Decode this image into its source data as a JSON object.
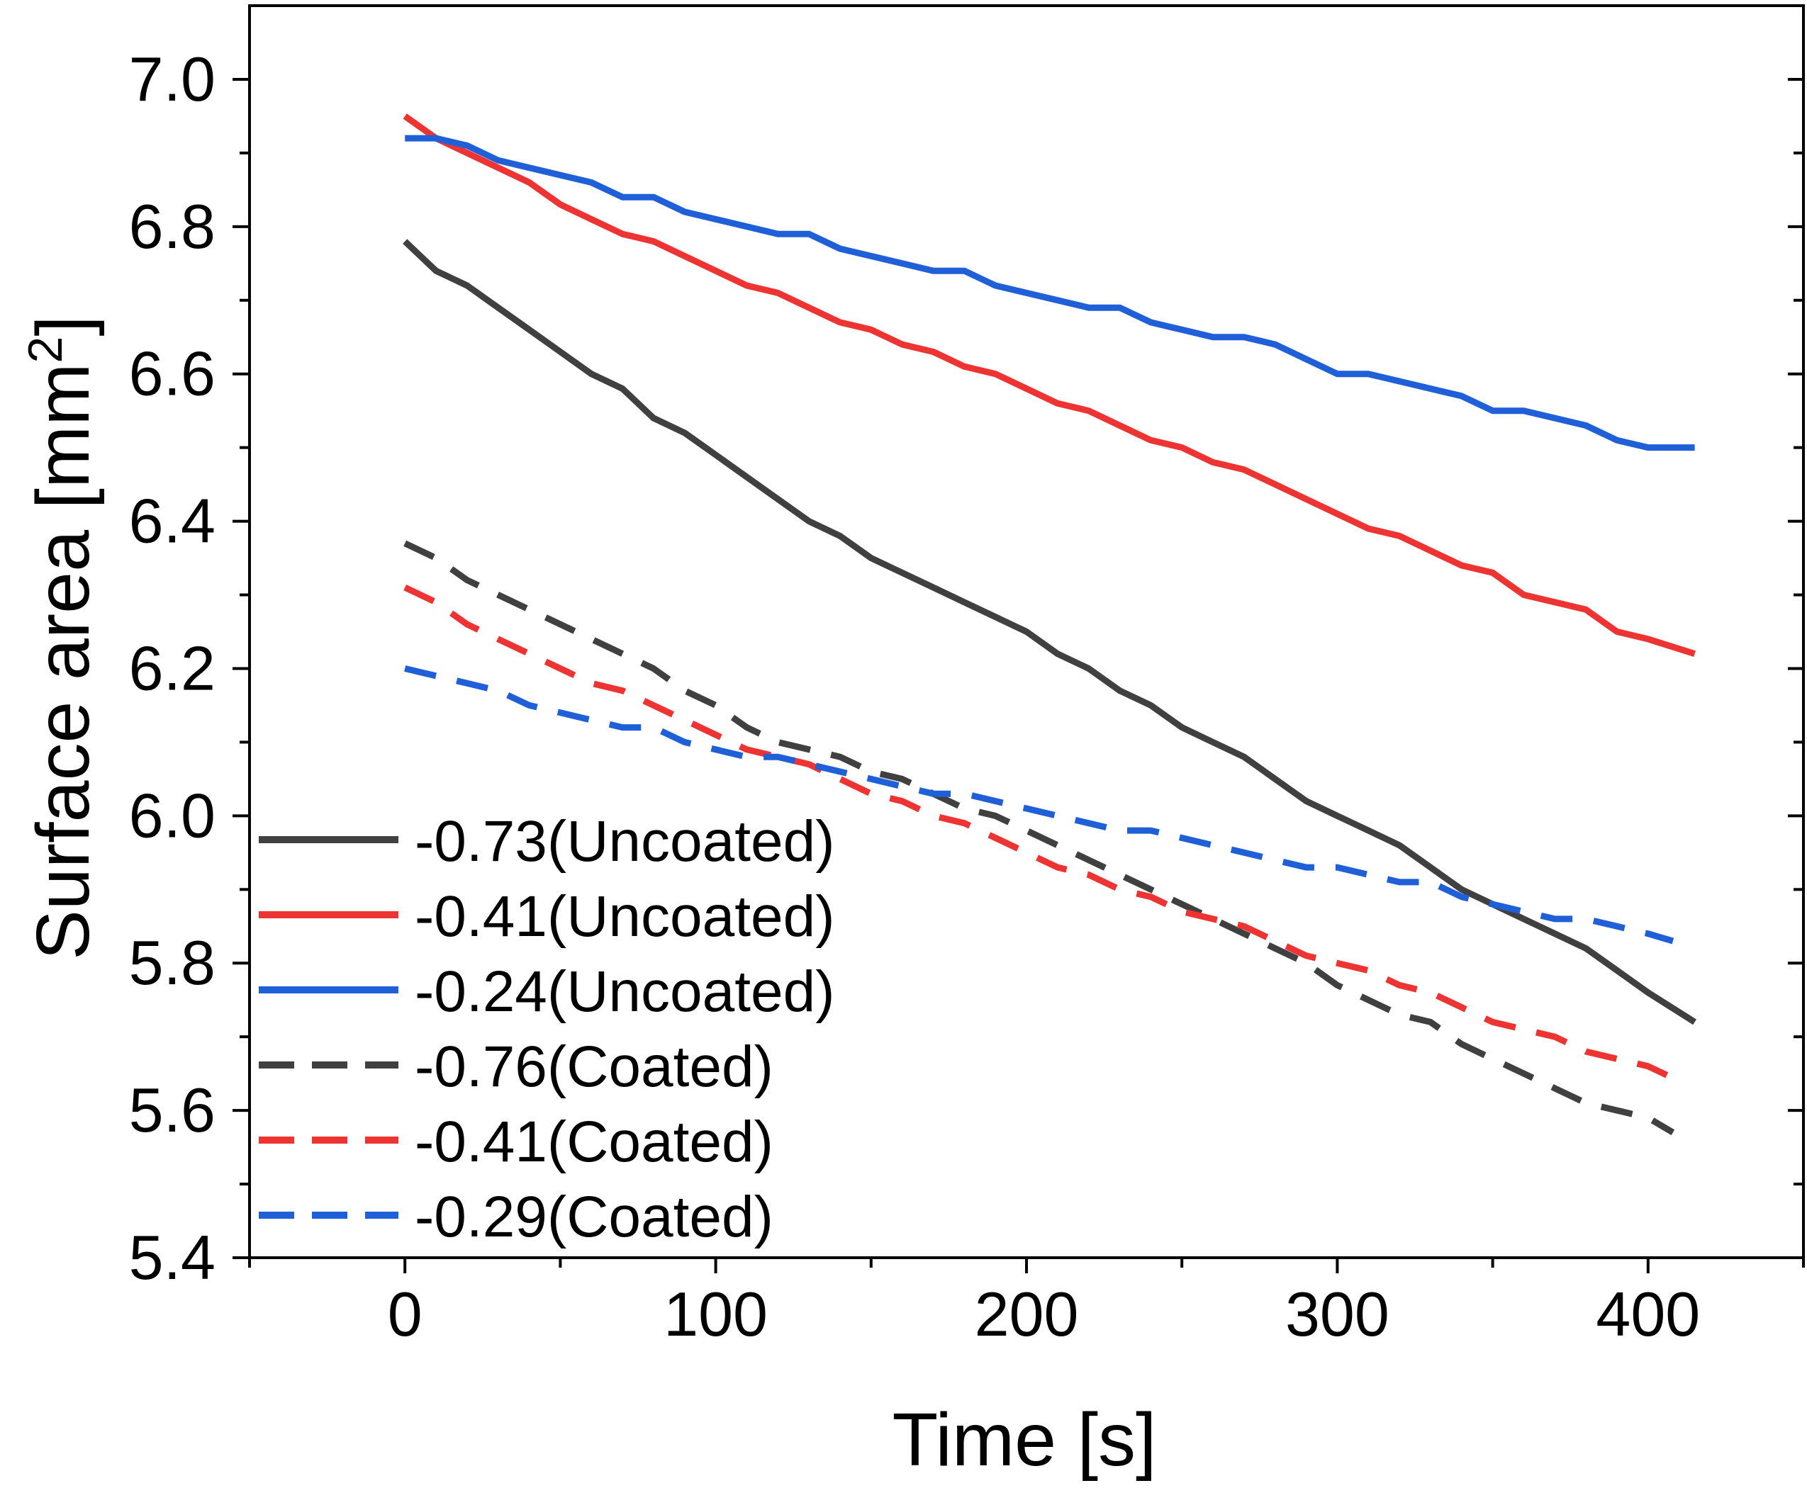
{
  "chart_data": {
    "type": "line",
    "title": "",
    "xlabel": "Time [s]",
    "ylabel": "Surface area [mm",
    "ylabel_sup": "2",
    "ylabel_end": "]",
    "xlim": [
      -50,
      450
    ],
    "ylim": [
      5.4,
      7.1
    ],
    "xticks": [
      0,
      100,
      200,
      300,
      400
    ],
    "xtick_labels": [
      "0",
      "100",
      "200",
      "300",
      "400"
    ],
    "yticks": [
      5.4,
      5.6,
      5.8,
      6.0,
      6.2,
      6.4,
      6.6,
      6.8,
      7.0
    ],
    "ytick_labels": [
      "5.4",
      "5.6",
      "5.8",
      "6.0",
      "6.2",
      "6.4",
      "6.6",
      "6.8",
      "7.0"
    ],
    "grid": false,
    "legend_position": "bottom-left",
    "series": [
      {
        "name": "-0.73(Uncoated)",
        "color": "#404040",
        "style": "solid",
        "x": [
          0,
          10,
          20,
          30,
          40,
          50,
          60,
          70,
          80,
          90,
          100,
          110,
          120,
          130,
          140,
          150,
          160,
          170,
          180,
          190,
          200,
          210,
          220,
          230,
          240,
          250,
          260,
          270,
          280,
          290,
          300,
          310,
          320,
          330,
          340,
          350,
          360,
          370,
          380,
          390,
          400,
          415
        ],
        "y": [
          6.78,
          6.74,
          6.72,
          6.69,
          6.66,
          6.63,
          6.6,
          6.58,
          6.54,
          6.52,
          6.49,
          6.46,
          6.43,
          6.4,
          6.38,
          6.35,
          6.33,
          6.31,
          6.29,
          6.27,
          6.25,
          6.22,
          6.2,
          6.17,
          6.15,
          6.12,
          6.1,
          6.08,
          6.05,
          6.02,
          6.0,
          5.98,
          5.96,
          5.93,
          5.9,
          5.88,
          5.86,
          5.84,
          5.82,
          5.79,
          5.76,
          5.72
        ]
      },
      {
        "name": "-0.41(Uncoated)",
        "color": "#ee3333",
        "style": "solid",
        "x": [
          0,
          10,
          20,
          30,
          40,
          50,
          60,
          70,
          80,
          90,
          100,
          110,
          120,
          130,
          140,
          150,
          160,
          170,
          180,
          190,
          200,
          210,
          220,
          230,
          240,
          250,
          260,
          270,
          280,
          290,
          300,
          310,
          320,
          330,
          340,
          350,
          360,
          370,
          380,
          390,
          400,
          415
        ],
        "y": [
          6.95,
          6.92,
          6.9,
          6.88,
          6.86,
          6.83,
          6.81,
          6.79,
          6.78,
          6.76,
          6.74,
          6.72,
          6.71,
          6.69,
          6.67,
          6.66,
          6.64,
          6.63,
          6.61,
          6.6,
          6.58,
          6.56,
          6.55,
          6.53,
          6.51,
          6.5,
          6.48,
          6.47,
          6.45,
          6.43,
          6.41,
          6.39,
          6.38,
          6.36,
          6.34,
          6.33,
          6.3,
          6.29,
          6.28,
          6.25,
          6.24,
          6.22
        ]
      },
      {
        "name": "-0.24(Uncoated)",
        "color": "#1f5fd8",
        "style": "solid",
        "x": [
          0,
          10,
          20,
          30,
          40,
          50,
          60,
          70,
          80,
          90,
          100,
          110,
          120,
          130,
          140,
          150,
          160,
          170,
          180,
          190,
          200,
          210,
          220,
          230,
          240,
          250,
          260,
          270,
          280,
          290,
          300,
          310,
          320,
          330,
          340,
          350,
          360,
          370,
          380,
          390,
          400,
          415
        ],
        "y": [
          6.92,
          6.92,
          6.91,
          6.89,
          6.88,
          6.87,
          6.86,
          6.84,
          6.84,
          6.82,
          6.81,
          6.8,
          6.79,
          6.79,
          6.77,
          6.76,
          6.75,
          6.74,
          6.74,
          6.72,
          6.71,
          6.7,
          6.69,
          6.69,
          6.67,
          6.66,
          6.65,
          6.65,
          6.64,
          6.62,
          6.6,
          6.6,
          6.59,
          6.58,
          6.57,
          6.55,
          6.55,
          6.54,
          6.53,
          6.51,
          6.5,
          6.5
        ]
      },
      {
        "name": "-0.76(Coated)",
        "color": "#404040",
        "style": "dashed",
        "x": [
          0,
          10,
          20,
          30,
          40,
          50,
          60,
          70,
          80,
          90,
          100,
          110,
          120,
          130,
          140,
          150,
          160,
          170,
          180,
          190,
          200,
          210,
          220,
          230,
          240,
          250,
          260,
          270,
          280,
          290,
          300,
          310,
          320,
          330,
          340,
          350,
          360,
          370,
          380,
          390,
          400,
          408
        ],
        "y": [
          6.37,
          6.35,
          6.32,
          6.3,
          6.28,
          6.26,
          6.24,
          6.22,
          6.2,
          6.17,
          6.15,
          6.12,
          6.1,
          6.09,
          6.08,
          6.06,
          6.05,
          6.03,
          6.01,
          6.0,
          5.98,
          5.96,
          5.94,
          5.92,
          5.9,
          5.88,
          5.86,
          5.84,
          5.82,
          5.8,
          5.77,
          5.75,
          5.73,
          5.72,
          5.69,
          5.67,
          5.65,
          5.63,
          5.61,
          5.6,
          5.59,
          5.57
        ]
      },
      {
        "name": "-0.41(Coated)",
        "color": "#ee3333",
        "style": "dashed",
        "x": [
          0,
          10,
          20,
          30,
          40,
          50,
          60,
          70,
          80,
          90,
          100,
          110,
          120,
          130,
          140,
          150,
          160,
          170,
          180,
          190,
          200,
          210,
          220,
          230,
          240,
          250,
          260,
          270,
          280,
          290,
          300,
          310,
          320,
          330,
          340,
          350,
          360,
          370,
          380,
          390,
          400,
          410
        ],
        "y": [
          6.31,
          6.29,
          6.26,
          6.24,
          6.22,
          6.2,
          6.18,
          6.17,
          6.15,
          6.13,
          6.11,
          6.09,
          6.08,
          6.07,
          6.05,
          6.03,
          6.02,
          6.0,
          5.99,
          5.97,
          5.95,
          5.93,
          5.92,
          5.9,
          5.89,
          5.87,
          5.86,
          5.85,
          5.83,
          5.81,
          5.8,
          5.79,
          5.77,
          5.76,
          5.74,
          5.72,
          5.71,
          5.7,
          5.68,
          5.67,
          5.66,
          5.64
        ]
      },
      {
        "name": "-0.29(Coated)",
        "color": "#1f5fd8",
        "style": "dashed",
        "x": [
          0,
          10,
          20,
          30,
          40,
          50,
          60,
          70,
          80,
          90,
          100,
          110,
          120,
          130,
          140,
          150,
          160,
          170,
          180,
          190,
          200,
          210,
          220,
          230,
          240,
          250,
          260,
          270,
          280,
          290,
          300,
          310,
          320,
          330,
          340,
          350,
          360,
          370,
          380,
          390,
          400,
          408
        ],
        "y": [
          6.2,
          6.19,
          6.18,
          6.17,
          6.15,
          6.14,
          6.13,
          6.12,
          6.12,
          6.1,
          6.09,
          6.08,
          6.08,
          6.07,
          6.06,
          6.05,
          6.04,
          6.03,
          6.03,
          6.02,
          6.01,
          6.0,
          5.99,
          5.98,
          5.98,
          5.97,
          5.96,
          5.95,
          5.94,
          5.93,
          5.93,
          5.92,
          5.91,
          5.91,
          5.89,
          5.88,
          5.87,
          5.86,
          5.86,
          5.85,
          5.84,
          5.83
        ]
      }
    ]
  }
}
